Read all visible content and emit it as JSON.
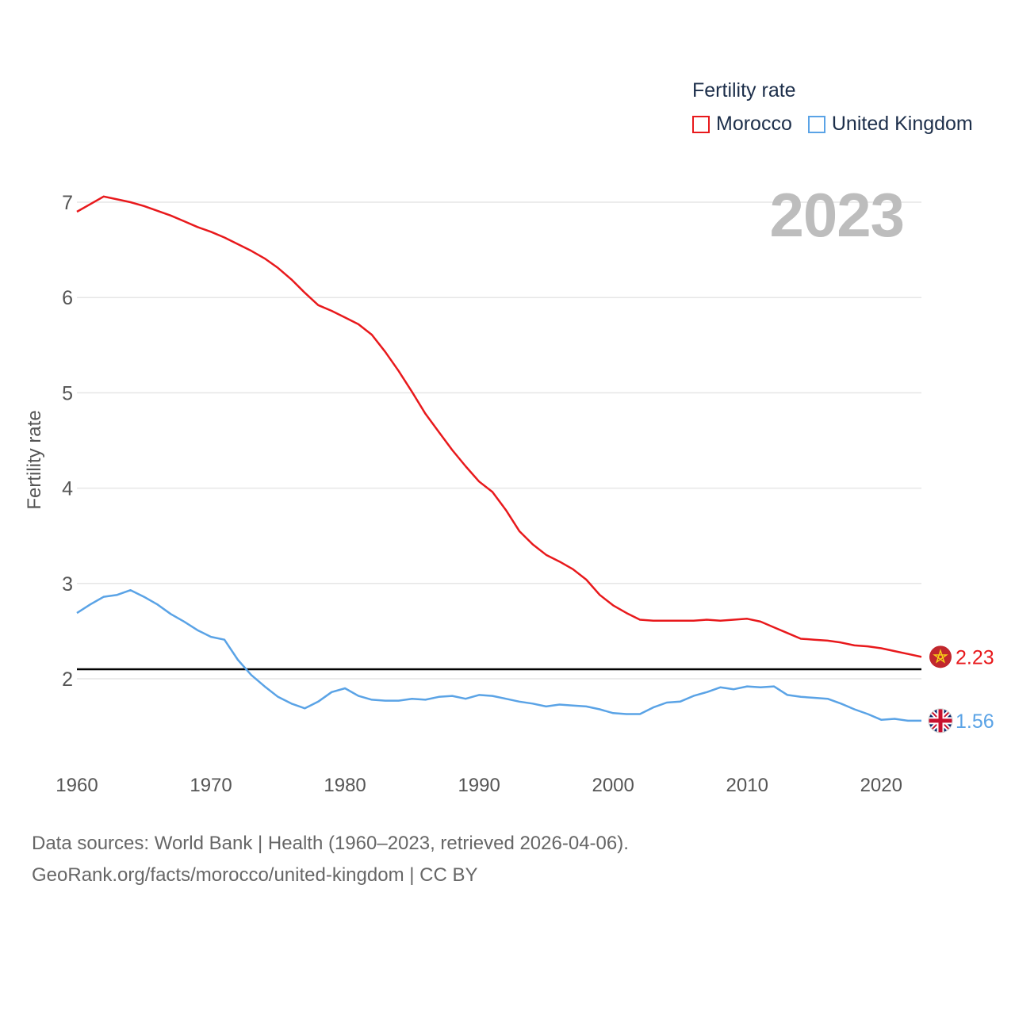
{
  "chart_data": {
    "type": "line",
    "legend_title": "Fertility rate",
    "year_label": "2023",
    "ylabel": "Fertility rate",
    "xlabel": "",
    "xlim": [
      1960,
      2023
    ],
    "ylim": [
      1.0,
      7.2
    ],
    "x_ticks": [
      1960,
      1970,
      1980,
      1990,
      2000,
      2010,
      2020
    ],
    "y_ticks": [
      2,
      3,
      4,
      5,
      6,
      7
    ],
    "reference_line": 2.1,
    "grid": true,
    "x": [
      1960,
      1961,
      1962,
      1963,
      1964,
      1965,
      1966,
      1967,
      1968,
      1969,
      1970,
      1971,
      1972,
      1973,
      1974,
      1975,
      1976,
      1977,
      1978,
      1979,
      1980,
      1981,
      1982,
      1983,
      1984,
      1985,
      1986,
      1987,
      1988,
      1989,
      1990,
      1991,
      1992,
      1993,
      1994,
      1995,
      1996,
      1997,
      1998,
      1999,
      2000,
      2001,
      2002,
      2003,
      2004,
      2005,
      2006,
      2007,
      2008,
      2009,
      2010,
      2011,
      2012,
      2013,
      2014,
      2015,
      2016,
      2017,
      2018,
      2019,
      2020,
      2021,
      2022,
      2023
    ],
    "series": [
      {
        "name": "Morocco",
        "color": "#e8191c",
        "end_label": "2.23",
        "flag_icon": "morocco-flag-icon",
        "values": [
          6.9,
          6.98,
          7.06,
          7.03,
          7.0,
          6.96,
          6.91,
          6.86,
          6.8,
          6.74,
          6.69,
          6.63,
          6.56,
          6.49,
          6.41,
          6.31,
          6.19,
          6.05,
          5.92,
          5.86,
          5.79,
          5.72,
          5.61,
          5.43,
          5.23,
          5.01,
          4.78,
          4.59,
          4.4,
          4.23,
          4.07,
          3.96,
          3.77,
          3.55,
          3.41,
          3.3,
          3.23,
          3.15,
          3.04,
          2.88,
          2.77,
          2.69,
          2.62,
          2.61,
          2.61,
          2.61,
          2.61,
          2.62,
          2.61,
          2.62,
          2.63,
          2.6,
          2.54,
          2.48,
          2.42,
          2.41,
          2.4,
          2.38,
          2.35,
          2.34,
          2.32,
          2.29,
          2.26,
          2.23
        ]
      },
      {
        "name": "United Kingdom",
        "color": "#5aa3e6",
        "end_label": "1.56",
        "flag_icon": "united-kingdom-flag-icon",
        "values": [
          2.69,
          2.78,
          2.86,
          2.88,
          2.93,
          2.86,
          2.78,
          2.68,
          2.6,
          2.51,
          2.44,
          2.41,
          2.2,
          2.04,
          1.92,
          1.81,
          1.74,
          1.69,
          1.76,
          1.86,
          1.9,
          1.82,
          1.78,
          1.77,
          1.77,
          1.79,
          1.78,
          1.81,
          1.82,
          1.79,
          1.83,
          1.82,
          1.79,
          1.76,
          1.74,
          1.71,
          1.73,
          1.72,
          1.71,
          1.68,
          1.64,
          1.63,
          1.63,
          1.7,
          1.75,
          1.76,
          1.82,
          1.86,
          1.91,
          1.89,
          1.92,
          1.91,
          1.92,
          1.83,
          1.81,
          1.8,
          1.79,
          1.74,
          1.68,
          1.63,
          1.57,
          1.58,
          1.56,
          1.56
        ]
      }
    ],
    "source_line1": "Data sources: World Bank | Health (1960–2023, retrieved 2026-04-06).",
    "source_line2": "GeoRank.org/facts/morocco/united-kingdom | CC BY"
  }
}
